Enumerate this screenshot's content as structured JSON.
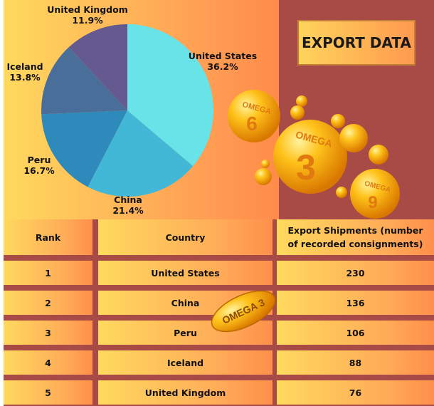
{
  "title": "EXPORT DATA",
  "chart_data": {
    "type": "pie",
    "categories": [
      "United States",
      "China",
      "Peru",
      "Iceland",
      "United Kingdom"
    ],
    "values": [
      36.2,
      21.4,
      16.7,
      13.8,
      11.9
    ],
    "labels": [
      "36.2%",
      "21.4%",
      "16.7%",
      "13.8%",
      "11.9%"
    ],
    "colors": [
      "#68e3e8",
      "#42b8d6",
      "#2d8aba",
      "#4a6e9a",
      "#645a8f"
    ],
    "start": "top",
    "direction": "clockwise"
  },
  "decor": {
    "capsule_6": {
      "top": "OMEGA",
      "num": "6"
    },
    "capsule_3": {
      "top": "OMEGA",
      "num": "3"
    },
    "capsule_9": {
      "top": "OMEGA",
      "num": "9"
    },
    "softgel": "OMEGA 3"
  },
  "table": {
    "headers": [
      "Rank",
      "Country",
      "Export Shipments (number of recorded consignments)"
    ],
    "rows": [
      [
        "1",
        "United States",
        "230"
      ],
      [
        "2",
        "China",
        "136"
      ],
      [
        "3",
        "Peru",
        "106"
      ],
      [
        "4",
        "Iceland",
        "88"
      ],
      [
        "5",
        "United Kingdom",
        "76"
      ]
    ]
  }
}
